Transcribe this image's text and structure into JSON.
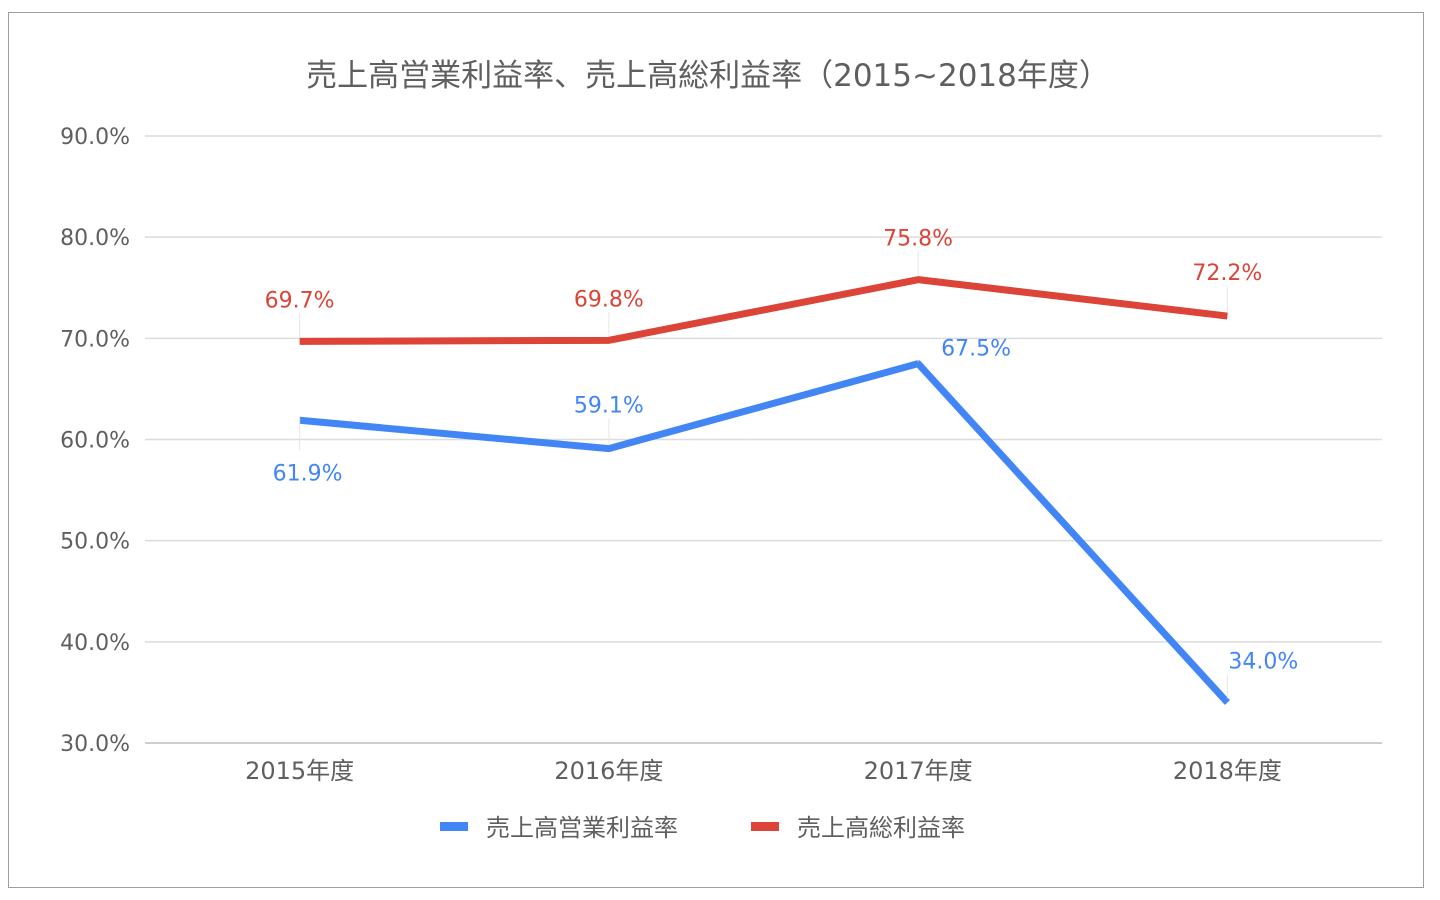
{
  "chart_data": {
    "type": "line",
    "title": "売上高営業利益率、売上高総利益率（2015~2018年度）",
    "categories": [
      "2015年度",
      "2016年度",
      "2017年度",
      "2018年度"
    ],
    "y_ticks": [
      "90.0%",
      "80.0%",
      "70.0%",
      "60.0%",
      "50.0%",
      "40.0%",
      "30.0%"
    ],
    "ylim": [
      30,
      90
    ],
    "grid": true,
    "legend_position": "bottom",
    "series": [
      {
        "name": "売上高営業利益率",
        "color": "#4285f4",
        "values": [
          61.9,
          59.1,
          67.5,
          34.0
        ],
        "labels": [
          "61.9%",
          "59.1%",
          "67.5%",
          "34.0%"
        ]
      },
      {
        "name": "売上高総利益率",
        "color": "#db4437",
        "values": [
          69.7,
          69.8,
          75.8,
          72.2
        ],
        "labels": [
          "69.7%",
          "69.8%",
          "75.8%",
          "72.2%"
        ]
      }
    ]
  }
}
